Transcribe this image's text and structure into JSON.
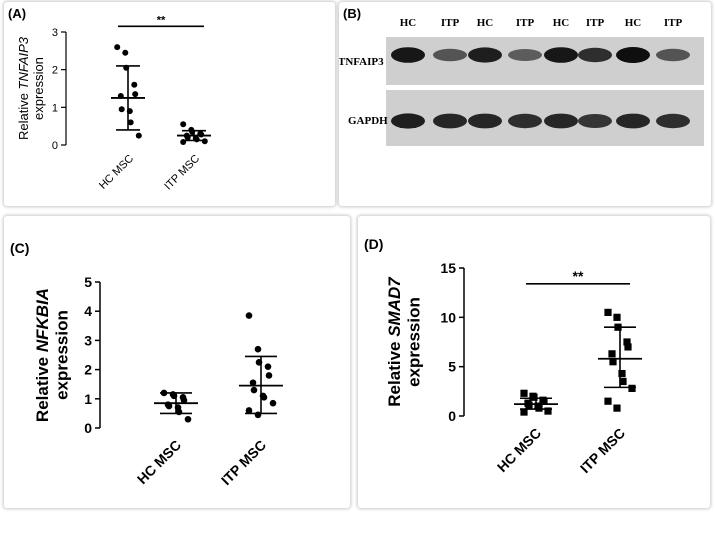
{
  "panels": {
    "a": {
      "label": "(A)"
    },
    "b": {
      "label": "(B)"
    },
    "c": {
      "label": "(C)"
    },
    "d": {
      "label": "(D)"
    }
  },
  "chart_data": [
    {
      "panel": "(A)",
      "type": "scatter",
      "ylabel_prefix": "Relative ",
      "ylabel_gene": "TNFAIP3",
      "ylabel_line2": "expression",
      "categories": [
        "HC MSC",
        "ITP MSC"
      ],
      "ylim": [
        0,
        3
      ],
      "yticks": [
        "0",
        "1",
        "2",
        "3"
      ],
      "marker": "circle",
      "significance": "**",
      "series": [
        {
          "values": [
            2.6,
            2.45,
            2.05,
            1.6,
            1.35,
            1.3,
            0.95,
            0.9,
            0.6,
            0.25
          ],
          "mean": 1.25,
          "sd_low": 0.4,
          "sd_high": 2.1
        },
        {
          "values": [
            0.55,
            0.4,
            0.35,
            0.3,
            0.28,
            0.25,
            0.2,
            0.18,
            0.15,
            0.1,
            0.08
          ],
          "mean": 0.25,
          "sd_low": 0.12,
          "sd_high": 0.38
        }
      ]
    },
    {
      "panel": "(C)",
      "type": "scatter",
      "ylabel_prefix": "Relative ",
      "ylabel_gene": "NFKBIA",
      "ylabel_line2": "expression",
      "categories": [
        "HC MSC",
        "ITP MSC"
      ],
      "ylim": [
        0,
        5
      ],
      "yticks": [
        "0",
        "1",
        "2",
        "3",
        "4",
        "5"
      ],
      "marker": "circle",
      "series": [
        {
          "values": [
            1.2,
            1.15,
            1.1,
            1.05,
            0.95,
            0.8,
            0.75,
            0.7,
            0.55,
            0.3
          ],
          "mean": 0.85,
          "sd_low": 0.5,
          "sd_high": 1.2
        },
        {
          "values": [
            3.85,
            2.7,
            2.25,
            2.1,
            1.8,
            1.55,
            1.3,
            1.1,
            1.05,
            0.85,
            0.6,
            0.45
          ],
          "mean": 1.45,
          "sd_low": 0.5,
          "sd_high": 2.45
        }
      ]
    },
    {
      "panel": "(D)",
      "type": "scatter",
      "ylabel_prefix": "Relative ",
      "ylabel_gene": "SMAD7",
      "ylabel_line2": "expression",
      "categories": [
        "HC MSC",
        "ITP MSC"
      ],
      "ylim": [
        0,
        15
      ],
      "yticks": [
        "0",
        "5",
        "10",
        "15"
      ],
      "marker": "square",
      "significance": "**",
      "series": [
        {
          "values": [
            2.3,
            2.0,
            1.9,
            1.6,
            1.5,
            1.3,
            1.1,
            1.0,
            0.8,
            0.5,
            0.4
          ],
          "mean": 1.2,
          "sd_low": 0.7,
          "sd_high": 1.8
        },
        {
          "values": [
            10.5,
            10.0,
            9.0,
            7.5,
            7.0,
            6.3,
            5.5,
            4.3,
            3.5,
            2.8,
            1.5,
            0.8
          ],
          "mean": 5.8,
          "sd_low": 2.9,
          "sd_high": 9.0
        }
      ]
    }
  ],
  "blot": {
    "lanes": [
      "HC",
      "ITP",
      "HC",
      "ITP",
      "HC",
      "ITP",
      "HC",
      "ITP"
    ],
    "rows": [
      {
        "label": "TNFAIP3",
        "intensity": [
          0.95,
          0.55,
          0.9,
          0.5,
          0.95,
          0.8,
          1.0,
          0.55
        ]
      },
      {
        "label": "GAPDH",
        "intensity": [
          0.9,
          0.85,
          0.85,
          0.8,
          0.85,
          0.75,
          0.85,
          0.8
        ]
      }
    ]
  }
}
